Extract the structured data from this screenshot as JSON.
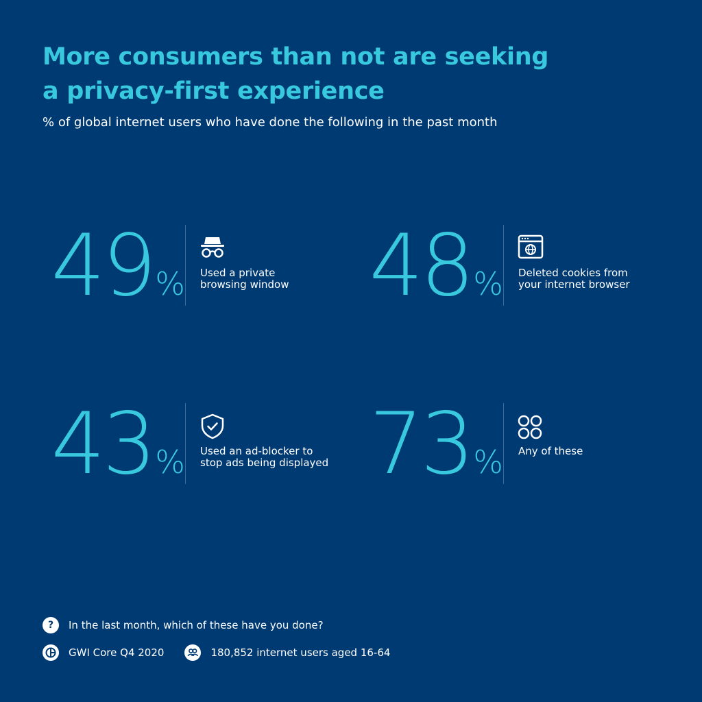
{
  "header": {
    "title_line1": "More consumers than not are seeking",
    "title_line2": "a privacy-first experience",
    "subtitle": "% of global internet users who have done the following in the past month"
  },
  "chart_data": {
    "type": "table",
    "unit": "%",
    "items": [
      {
        "value": 49,
        "label": "Used a private browsing window",
        "icon": "incognito-icon"
      },
      {
        "value": 48,
        "label": "Deleted cookies from your internet browser",
        "icon": "browser-globe-icon"
      },
      {
        "value": 43,
        "label": "Used an ad-blocker to stop ads being displayed",
        "icon": "shield-check-icon"
      },
      {
        "value": 73,
        "label": "Any of these",
        "icon": "four-circles-icon"
      }
    ]
  },
  "stats": [
    {
      "number": "49",
      "pct": "%",
      "label_line1": "Used a private",
      "label_line2": "browsing window"
    },
    {
      "number": "48",
      "pct": "%",
      "label_line1": "Deleted cookies from",
      "label_line2": "your internet browser"
    },
    {
      "number": "43",
      "pct": "%",
      "label_line1": "Used an ad-blocker to",
      "label_line2": "stop ads being displayed"
    },
    {
      "number": "73",
      "pct": "%",
      "label_line1": "Any of these",
      "label_line2": ""
    }
  ],
  "footer": {
    "question": "In the last month, which of these have you done?",
    "source": "GWI Core Q4 2020",
    "sample": "180,852 internet users aged 16-64"
  },
  "colors": {
    "background": "#003a73",
    "accent": "#38c9df",
    "text": "#ffffff",
    "divider": "#3f6b99"
  }
}
